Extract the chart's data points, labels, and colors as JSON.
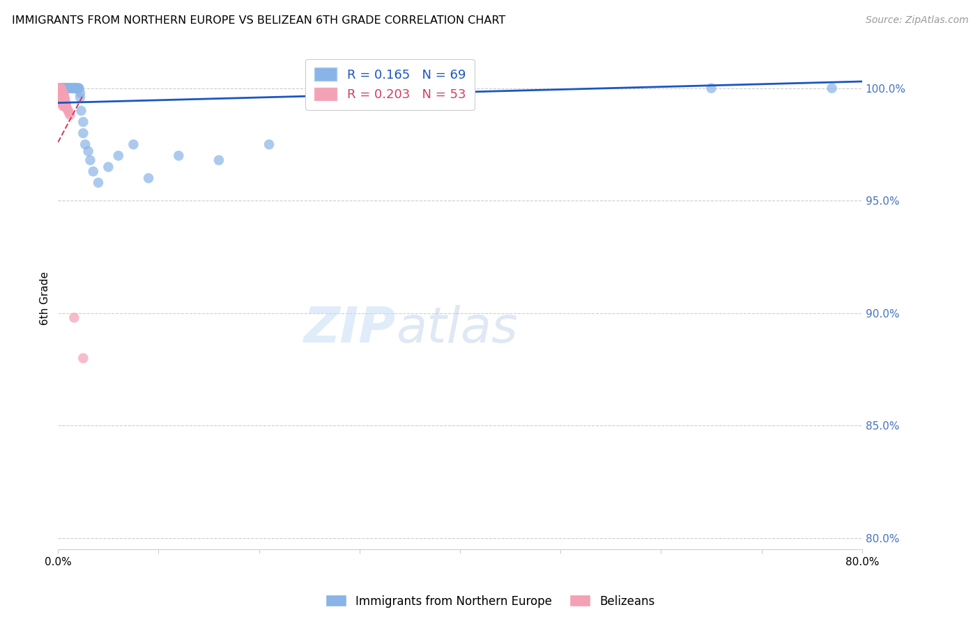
{
  "title": "IMMIGRANTS FROM NORTHERN EUROPE VS BELIZEAN 6TH GRADE CORRELATION CHART",
  "source": "Source: ZipAtlas.com",
  "ylabel": "6th Grade",
  "ytick_labels": [
    "100.0%",
    "95.0%",
    "90.0%",
    "85.0%",
    "80.0%"
  ],
  "ytick_values": [
    1.0,
    0.95,
    0.9,
    0.85,
    0.8
  ],
  "xlim": [
    0.0,
    0.8
  ],
  "ylim": [
    0.795,
    1.018
  ],
  "legend_blue_label": "Immigrants from Northern Europe",
  "legend_pink_label": "Belizeans",
  "legend_R_blue": "R = 0.165",
  "legend_N_blue": "N = 69",
  "legend_R_pink": "R = 0.203",
  "legend_N_pink": "N = 53",
  "blue_color": "#89b4e8",
  "pink_color": "#f4a0b5",
  "blue_line_color": "#1a56c4",
  "pink_line_color": "#d04060",
  "watermark_color": "#ddeeff",
  "blue_scatter_x": [
    0.001,
    0.002,
    0.002,
    0.003,
    0.003,
    0.004,
    0.004,
    0.004,
    0.005,
    0.005,
    0.005,
    0.006,
    0.006,
    0.006,
    0.007,
    0.007,
    0.007,
    0.008,
    0.008,
    0.008,
    0.009,
    0.009,
    0.009,
    0.01,
    0.01,
    0.01,
    0.01,
    0.011,
    0.011,
    0.011,
    0.012,
    0.012,
    0.012,
    0.013,
    0.013,
    0.014,
    0.014,
    0.015,
    0.015,
    0.016,
    0.016,
    0.017,
    0.017,
    0.018,
    0.018,
    0.019,
    0.019,
    0.02,
    0.02,
    0.021,
    0.022,
    0.022,
    0.023,
    0.025,
    0.025,
    0.027,
    0.03,
    0.032,
    0.035,
    0.04,
    0.05,
    0.06,
    0.075,
    0.09,
    0.12,
    0.16,
    0.21,
    0.65,
    0.77
  ],
  "blue_scatter_y": [
    1.0,
    1.0,
    1.0,
    1.0,
    1.0,
    1.0,
    1.0,
    1.0,
    1.0,
    1.0,
    1.0,
    1.0,
    1.0,
    1.0,
    1.0,
    1.0,
    1.0,
    1.0,
    1.0,
    1.0,
    1.0,
    1.0,
    1.0,
    1.0,
    1.0,
    1.0,
    1.0,
    1.0,
    1.0,
    1.0,
    1.0,
    1.0,
    1.0,
    1.0,
    1.0,
    1.0,
    1.0,
    1.0,
    1.0,
    1.0,
    1.0,
    1.0,
    1.0,
    1.0,
    1.0,
    1.0,
    1.0,
    1.0,
    1.0,
    1.0,
    0.998,
    0.996,
    0.99,
    0.985,
    0.98,
    0.975,
    0.972,
    0.968,
    0.963,
    0.958,
    0.965,
    0.97,
    0.975,
    0.96,
    0.97,
    0.968,
    0.975,
    1.0,
    1.0
  ],
  "pink_scatter_x": [
    0.001,
    0.001,
    0.001,
    0.001,
    0.002,
    0.002,
    0.002,
    0.002,
    0.002,
    0.002,
    0.002,
    0.002,
    0.002,
    0.003,
    0.003,
    0.003,
    0.003,
    0.003,
    0.003,
    0.003,
    0.003,
    0.003,
    0.004,
    0.004,
    0.004,
    0.004,
    0.004,
    0.004,
    0.004,
    0.005,
    0.005,
    0.005,
    0.005,
    0.005,
    0.005,
    0.005,
    0.006,
    0.006,
    0.006,
    0.006,
    0.006,
    0.006,
    0.007,
    0.007,
    0.007,
    0.008,
    0.008,
    0.009,
    0.01,
    0.011,
    0.012,
    0.016,
    0.025
  ],
  "pink_scatter_y": [
    1.0,
    1.0,
    1.0,
    0.999,
    1.0,
    1.0,
    0.999,
    0.999,
    0.998,
    0.998,
    0.997,
    0.997,
    0.996,
    1.0,
    0.999,
    0.999,
    0.998,
    0.997,
    0.997,
    0.996,
    0.995,
    0.995,
    0.999,
    0.998,
    0.997,
    0.996,
    0.995,
    0.994,
    0.993,
    0.998,
    0.997,
    0.996,
    0.995,
    0.994,
    0.993,
    0.992,
    0.997,
    0.996,
    0.995,
    0.994,
    0.993,
    0.992,
    0.995,
    0.994,
    0.993,
    0.993,
    0.992,
    0.991,
    0.99,
    0.989,
    0.988,
    0.898,
    0.88
  ],
  "blue_trendline_x": [
    0.0,
    0.8
  ],
  "blue_trendline_y": [
    0.9935,
    1.003
  ],
  "pink_trendline_x": [
    0.0,
    0.025
  ],
  "pink_trendline_y": [
    0.976,
    0.997
  ]
}
